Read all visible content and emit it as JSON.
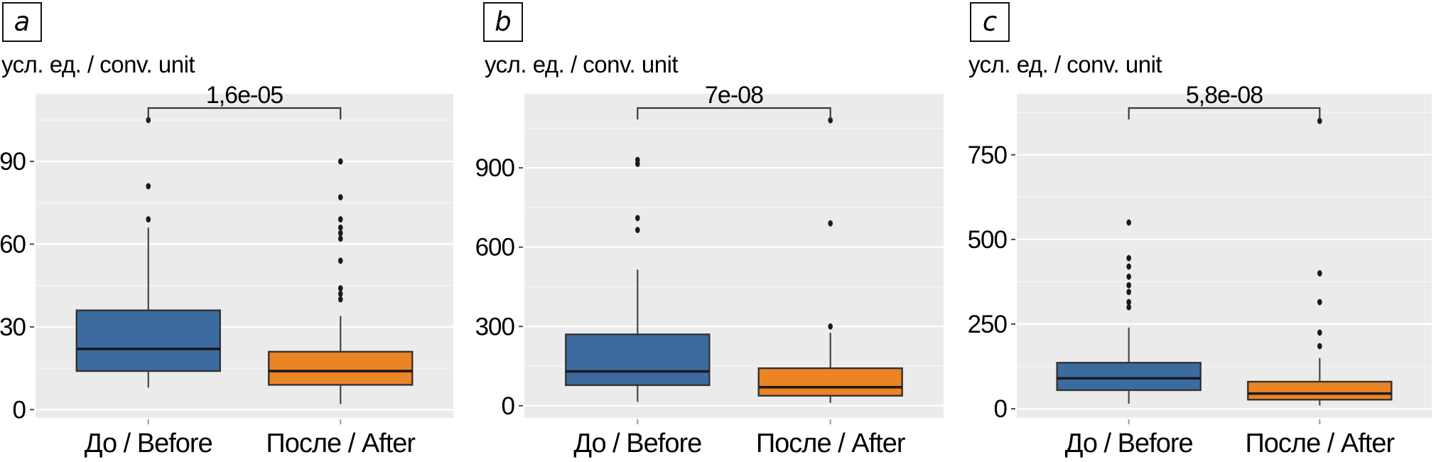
{
  "colors": {
    "before_fill": "#3c6c9f",
    "after_fill": "#eb8423",
    "plot_background": "#ebebeb",
    "grid_major": "#ffffff",
    "grid_minor": "#f6f6f6",
    "box_stroke": "#333333",
    "median_stroke": "#1a1a1a",
    "whisker_stroke": "#464646",
    "outlier_fill": "#1a1a1a",
    "bracket_stroke": "#3a3a3a",
    "tick_mark": "#4a4a4a",
    "category_tick_mark": "#9a9a9a",
    "text": "#000000"
  },
  "chart_data": [
    {
      "type": "boxplot",
      "panel_label": "a",
      "axis_title": "усл. ед. / conv. unit",
      "p_value_label": "1,6e-05",
      "categories": [
        "До / Before",
        "После / After"
      ],
      "yticks": [
        0,
        30,
        60,
        90
      ],
      "ylim": [
        -3,
        114.5
      ],
      "series": [
        {
          "name": "До / Before",
          "color_key": "before_fill",
          "whisker_low": 8,
          "q1": 14,
          "median": 22,
          "q3": 36,
          "whisker_high": 66,
          "outliers": [
            69,
            81,
            105
          ]
        },
        {
          "name": "После / After",
          "color_key": "after_fill",
          "whisker_low": 2,
          "q1": 9,
          "median": 14,
          "q3": 21,
          "whisker_high": 34,
          "outliers": [
            40,
            42,
            44,
            54,
            62,
            64,
            66,
            69,
            77,
            90
          ]
        }
      ]
    },
    {
      "type": "boxplot",
      "panel_label": "b",
      "axis_title": "усл. ед. / conv. unit",
      "p_value_label": "7e-08",
      "categories": [
        "До / Before",
        "После / After"
      ],
      "yticks": [
        0,
        300,
        600,
        900
      ],
      "ylim": [
        -46,
        1180
      ],
      "series": [
        {
          "name": "До / Before",
          "color_key": "before_fill",
          "whisker_low": 15,
          "q1": 78,
          "median": 130,
          "q3": 270,
          "whisker_high": 515,
          "outliers": [
            665,
            710,
            915,
            930
          ]
        },
        {
          "name": "После / After",
          "color_key": "after_fill",
          "whisker_low": 11,
          "q1": 38,
          "median": 70,
          "q3": 142,
          "whisker_high": 276,
          "outliers": [
            300,
            690,
            1080
          ]
        }
      ]
    },
    {
      "type": "boxplot",
      "panel_label": "c",
      "axis_title": "усл. ед. / conv. unit",
      "p_value_label": "5,8e-08",
      "categories": [
        "До / Before",
        "После / After"
      ],
      "yticks": [
        0,
        250,
        500,
        750
      ],
      "ylim": [
        -27,
        930
      ],
      "series": [
        {
          "name": "До / Before",
          "color_key": "before_fill",
          "whisker_low": 15,
          "q1": 55,
          "median": 90,
          "q3": 136,
          "whisker_high": 240,
          "outliers": [
            300,
            315,
            345,
            365,
            390,
            420,
            445,
            550
          ]
        },
        {
          "name": "После / After",
          "color_key": "after_fill",
          "whisker_low": 10,
          "q1": 27,
          "median": 45,
          "q3": 80,
          "whisker_high": 150,
          "outliers": [
            185,
            225,
            315,
            400,
            850
          ]
        }
      ]
    }
  ]
}
